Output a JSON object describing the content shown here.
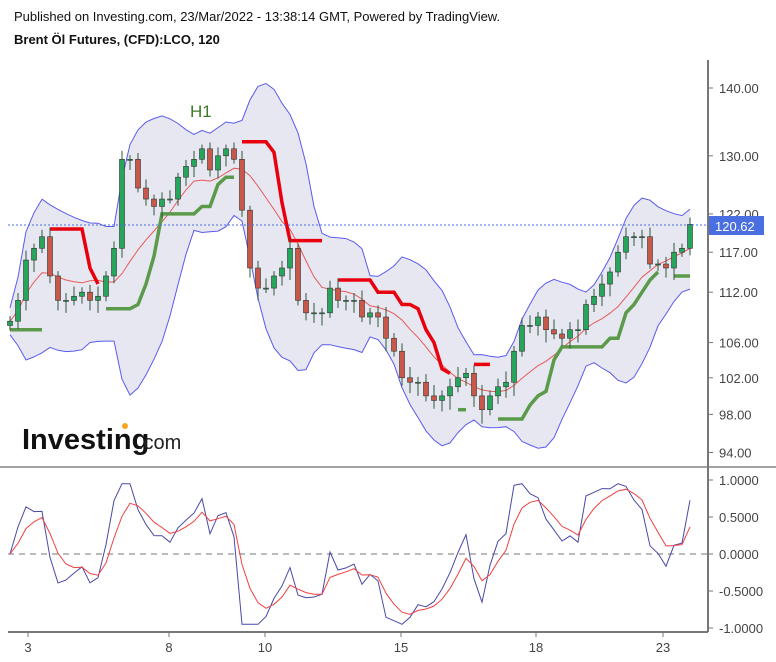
{
  "header": {
    "published": "Published on Investing.com, 23/Mar/2022 - 13:38:14 GMT, Powered by TradingView.",
    "symbol": "Brent Öl Futures, (CFD):LCO, 120"
  },
  "logo": {
    "brand": "Investing",
    "suffix": ".com"
  },
  "colors": {
    "up": "#26a65b",
    "down": "#c8584a",
    "band": "#5a5af0",
    "band_fill": "#e4e4f0",
    "basis": "#e85a5a",
    "trend_red": "#e8000f",
    "trend_green": "#5a9a4a",
    "last_price": "#4a6fe0",
    "osc_fast": "#4848a8",
    "osc_slow": "#f04040"
  },
  "chart_data": [
    {
      "type": "candlestick",
      "scale": "log",
      "annotation": "H1",
      "last_price": "120.62",
      "y_ticks": [
        "140.00",
        "130.00",
        "122.00",
        "117.00",
        "112.00",
        "106.00",
        "102.00",
        "98.00",
        "94.00"
      ],
      "y_tick_values": [
        140,
        130,
        122,
        117,
        112,
        106,
        102,
        98,
        94
      ],
      "x_ticks": [
        "3",
        "8",
        "10",
        "15",
        "18",
        "23"
      ],
      "overlays": [
        "bollinger-bands",
        "trend-stop-line"
      ],
      "closes": [
        108.5,
        111,
        116,
        117.5,
        119,
        114,
        111,
        111,
        111.5,
        112,
        111,
        111.5,
        114,
        117.5,
        129.5,
        129.5,
        125.5,
        124,
        123,
        124,
        124,
        127,
        128.5,
        129.5,
        131,
        128,
        130,
        131,
        129.5,
        122.5,
        115,
        112.5,
        112.5,
        114,
        115,
        117.5,
        111,
        109.5,
        109.5,
        109.5,
        112.5,
        111,
        111,
        111,
        109,
        109.5,
        109,
        106.5,
        105,
        102,
        101.5,
        101.5,
        100,
        99.5,
        100,
        101,
        102,
        102.5,
        100,
        98.5,
        100,
        101,
        101.5,
        105,
        108,
        108,
        109,
        107.5,
        107,
        106.5,
        107.5,
        107.5,
        110.5,
        111.5,
        113,
        114.5,
        117,
        119,
        119,
        119,
        115.5,
        115.5,
        115,
        117,
        117.5,
        120.62
      ]
    },
    {
      "type": "line",
      "y_ticks": [
        "1.0000",
        "0.5000",
        "0.0000",
        "-0.5000",
        "-1.0000"
      ],
      "y_tick_values": [
        1,
        0.5,
        0,
        -0.5,
        -1
      ],
      "ylim": [
        -1,
        1
      ],
      "zero_line": "dashed"
    }
  ]
}
